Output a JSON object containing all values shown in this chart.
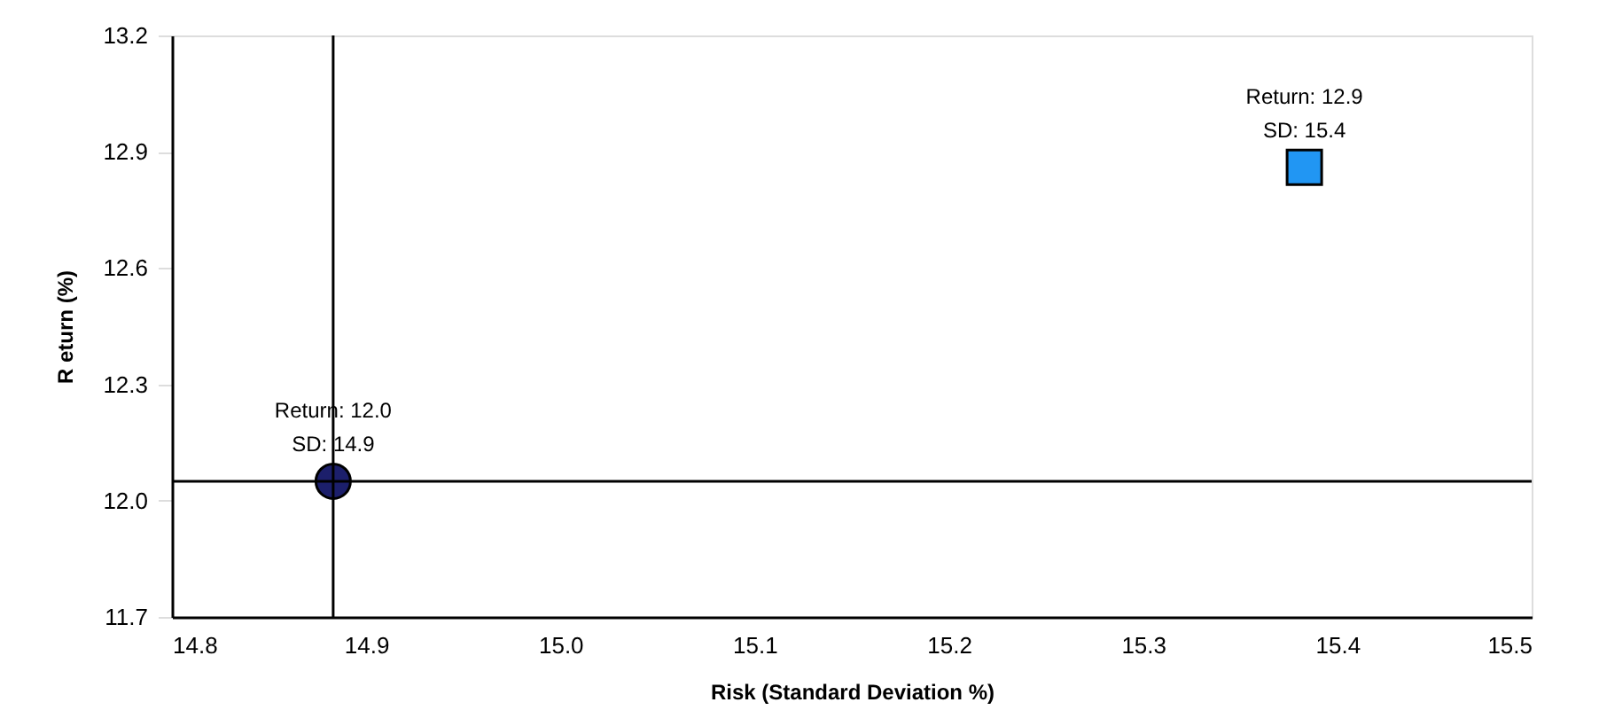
{
  "chart_data": {
    "type": "scatter",
    "xlabel": "Risk (Standard Deviation %)",
    "ylabel": "R eturn (%)",
    "xlim": [
      14.8,
      15.5
    ],
    "xticks": [
      14.8,
      14.9,
      {
        "value": 15,
        "label": "15.0"
      },
      15.1,
      15.2,
      15.3,
      15.4,
      15.5
    ],
    "ylim": [
      11.7,
      13.2
    ],
    "yticks": [
      11.7,
      {
        "value": 12,
        "label": "12.0"
      },
      12.3,
      12.6,
      12.9,
      13.2
    ],
    "grid": false,
    "series": [
      {
        "x": [
          14.883
        ],
        "values": [
          12.05
        ],
        "color": "#1c1f6b",
        "marker": "circle"
      },
      {
        "x": [
          15.383
        ],
        "values": [
          12.86
        ],
        "color": "#2196f3",
        "marker": "square"
      }
    ],
    "ref_lines": [
      {
        "axis": "x",
        "value": 14.883,
        "color": "#000000"
      },
      {
        "axis": "y",
        "value": 12.05,
        "color": "#000000"
      }
    ],
    "annotations": [
      {
        "text": "Return: 12.0\nSD: 14.9",
        "x": 14.883,
        "y": 12.05
      },
      {
        "text": "Return: 12.9\nSD: 15.4",
        "x": 15.383,
        "y": 12.86
      }
    ]
  }
}
